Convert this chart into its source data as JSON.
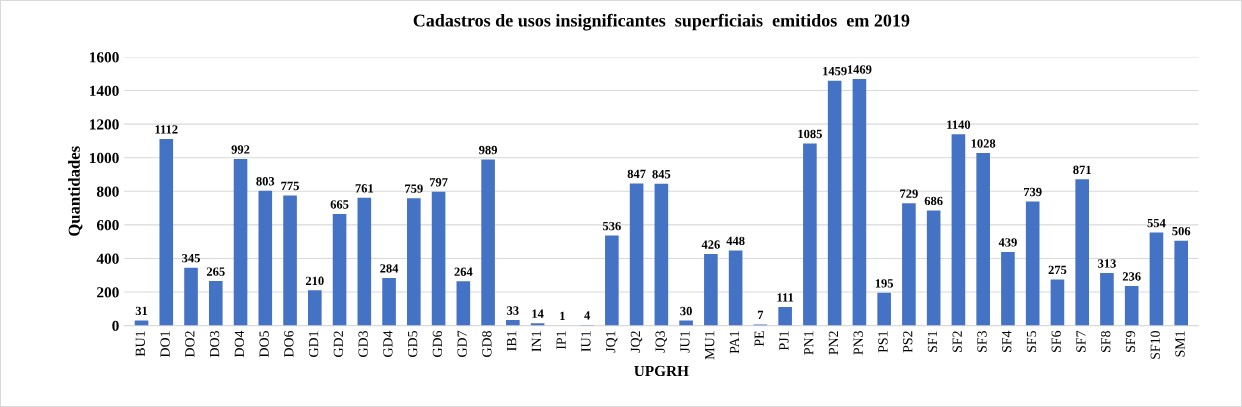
{
  "chart_data": {
    "type": "bar",
    "title": "Cadastros de usos insignificantes  superficiais  emitidos  em 2019",
    "xlabel": "UPGRH",
    "ylabel": "Quantidades",
    "categories": [
      "BU1",
      "DO1",
      "DO2",
      "DO3",
      "DO4",
      "DO5",
      "DO6",
      "GD1",
      "GD2",
      "GD3",
      "GD4",
      "GD5",
      "GD6",
      "GD7",
      "GD8",
      "IB1",
      "IN1",
      "IP1",
      "IU1",
      "JQ1",
      "JQ2",
      "JQ3",
      "JU1",
      "MU1",
      "PA1",
      "PE",
      "PJ1",
      "PN1",
      "PN2",
      "PN3",
      "PS1",
      "PS2",
      "SF1",
      "SF2",
      "SF3",
      "SF4",
      "SF5",
      "SF6",
      "SF7",
      "SF8",
      "SF9",
      "SF10",
      "SM1"
    ],
    "values": [
      31,
      1112,
      345,
      265,
      992,
      803,
      775,
      210,
      665,
      761,
      284,
      759,
      797,
      264,
      989,
      33,
      14,
      1,
      4,
      536,
      847,
      845,
      30,
      426,
      448,
      7,
      111,
      1085,
      1459,
      1469,
      195,
      729,
      686,
      1140,
      1028,
      439,
      739,
      275,
      871,
      313,
      236,
      554,
      506
    ],
    "color": "#4472c4",
    "ylim": [
      0,
      1600
    ],
    "yticks": [
      0,
      200,
      400,
      600,
      800,
      1000,
      1200,
      1400,
      1600
    ],
    "grid": "y",
    "data_labels": true
  }
}
